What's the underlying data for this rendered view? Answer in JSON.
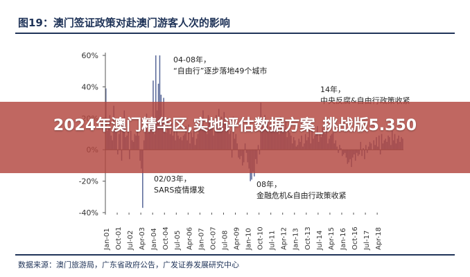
{
  "figure": {
    "title": "图19：澳门签证政策对赴澳门游客人次的影响",
    "source": "数据来源：澳门旅游局，广东省政府公告，广发证券发展研究中心"
  },
  "overlay": {
    "headline": "2024年澳门精华区,实地评估数据方案_挑战版5.350"
  },
  "chart_data": {
    "type": "bar",
    "title": "",
    "xlabel": "",
    "ylabel": "",
    "ylim": [
      -0.4,
      0.6
    ],
    "y_ticks": [
      -0.4,
      -0.2,
      0.0,
      0.2,
      0.4,
      0.6
    ],
    "y_tick_labels": [
      "-40%",
      "-20%",
      "0%",
      "20%",
      "40%",
      "60%"
    ],
    "x_tick_labels": [
      "Jan-01",
      "Oct-01",
      "Jul-02",
      "Apr-03",
      "Jan-04",
      "Oct-04",
      "Jul-05",
      "Apr-06",
      "Jan-07",
      "Oct-07",
      "Jul-08",
      "Apr-09",
      "Jan-10",
      "Oct-10",
      "Jul-11",
      "Apr-12",
      "Jan-13",
      "Oct-13",
      "Jul-14",
      "Apr-15",
      "Jan-16",
      "Oct-16",
      "Jul-17",
      "Apr-18"
    ],
    "start": "Jan-01",
    "frequency": "monthly",
    "grid": false,
    "bar_color": "#5b6a9a",
    "values": [
      0.39,
      0.12,
      0.14,
      0.22,
      0.09,
      0.06,
      0.28,
      0.15,
      0.11,
      -0.03,
      0.1,
      0.12,
      -0.07,
      0.18,
      0.25,
      0.08,
      0.09,
      0.13,
      -0.06,
      0.12,
      0.06,
      0.05,
      0.1,
      0.09,
      0.13,
      0.09,
      -0.07,
      -0.12,
      -0.37,
      0.06,
      0.12,
      0.23,
      0.11,
      0.15,
      0.2,
      0.18,
      0.44,
      0.1,
      0.6,
      0.25,
      0.42,
      0.6,
      0.35,
      0.19,
      0.33,
      0.16,
      0.11,
      0.2,
      0.13,
      0.1,
      0.17,
      0.09,
      0.14,
      0.06,
      0.12,
      0.09,
      0.07,
      0.08,
      0.06,
      0.09,
      0.1,
      0.15,
      0.06,
      0.16,
      0.04,
      0.11,
      0.08,
      0.13,
      0.03,
      0.07,
      0.1,
      0.14,
      0.19,
      0.14,
      0.25,
      0.12,
      0.14,
      0.1,
      0.22,
      0.17,
      0.14,
      0.18,
      0.09,
      0.13,
      0.22,
      0.16,
      0.26,
      0.14,
      0.21,
      0.17,
      0.24,
      0.18,
      0.14,
      0.16,
      0.1,
      0.12,
      -0.05,
      0.21,
      0.07,
      0.1,
      0.04,
      -0.05,
      -0.06,
      -0.04,
      -0.1,
      -0.08,
      0.04,
      -0.02,
      -0.08,
      -0.12,
      -0.2,
      -0.19,
      -0.14,
      -0.17,
      -0.06,
      -0.09,
      0.03,
      -0.03,
      0.3,
      0.18,
      0.14,
      0.22,
      0.18,
      0.19,
      0.11,
      0.17,
      0.13,
      0.15,
      0.16,
      0.12,
      0.14,
      0.18,
      0.1,
      0.21,
      0.12,
      0.16,
      0.13,
      0.19,
      0.08,
      0.14,
      0.11,
      0.09,
      0.04,
      0.08,
      0.06,
      0.02,
      0.03,
      0.07,
      0.05,
      0.09,
      0.02,
      0.04,
      0.1,
      0.06,
      0.08,
      0.13,
      0.04,
      0.12,
      0.07,
      0.09,
      0.11,
      0.15,
      0.05,
      0.1,
      0.08,
      0.14,
      0.12,
      0.1,
      0.15,
      0.04,
      0.07,
      0.09,
      0.1,
      0.11,
      0.04,
      0.06,
      0.02,
      -0.02,
      0.03,
      0.01,
      -0.04,
      -0.03,
      -0.02,
      -0.05,
      -0.09,
      -0.08,
      -0.06,
      -0.11,
      -0.05,
      -0.03,
      -0.07,
      -0.02,
      -0.04,
      -0.03,
      0.05,
      -0.04,
      0.01,
      -0.06,
      0.03,
      -0.02,
      0.02,
      0.05,
      0.04,
      0.0,
      0.06,
      0.03,
      0.08,
      0.02,
      0.09,
      -0.03,
      0.1,
      0.04,
      0.06,
      0.07,
      0.05,
      0.09,
      0.08,
      0.03,
      0.12,
      0.06,
      0.1,
      0.04,
      0.07,
      0.09,
      0.05,
      0.08,
      0.07
    ],
    "annotations": [
      {
        "text": "04-08年，“自由行”逐步落地49个城市"
      },
      {
        "text": "14年，中央反腐&自由行政策收紧"
      },
      {
        "text": "02/03年，SARS疫情爆发"
      },
      {
        "text": "08年，金融危机&自由行政策收紧"
      }
    ]
  }
}
